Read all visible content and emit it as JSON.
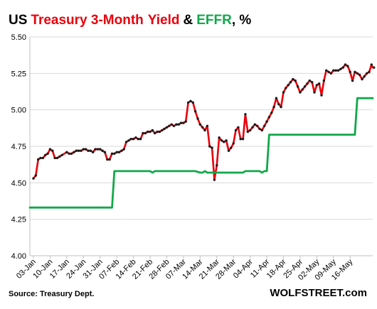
{
  "chart_data": {
    "type": "line",
    "title_parts": [
      {
        "text": "US ",
        "color": "#000000"
      },
      {
        "text": "Treasury 3-Month Yield",
        "color": "#e8000b"
      },
      {
        "text": " & ",
        "color": "#000000"
      },
      {
        "text": "EFFR",
        "color": "#11a84a"
      },
      {
        "text": ", %",
        "color": "#000000"
      }
    ],
    "title_1": "US",
    "title_2": "Treasury 3-Month",
    "title_3": "Yield",
    "title_4": "&",
    "title_5": "EFFR",
    "title_6": ", %",
    "ylim": [
      4.0,
      5.5
    ],
    "yticks": [
      "4.00",
      "4.25",
      "4.50",
      "4.75",
      "5.00",
      "5.25",
      "5.50"
    ],
    "xticks": [
      "03-Jan",
      "10-Jan",
      "17-Jan",
      "24-Jan",
      "31-Jan",
      "07-Feb",
      "14-Feb",
      "21-Feb",
      "28-Feb",
      "07-Mar",
      "14-Mar",
      "21-Mar",
      "28-Mar",
      "04-Apr",
      "11-Apr",
      "18-Apr",
      "25-Apr",
      "02-May",
      "09-May",
      "16-May"
    ],
    "x_range_days": [
      0,
      141
    ],
    "grid": "horizontal",
    "colors": {
      "treasury": "#e8000b",
      "effr": "#11a84a",
      "points": "#1a1a1a",
      "grid": "#d9d9d9"
    },
    "series": [
      {
        "name": "Treasury 3-Month Yield",
        "color": "#e8000b",
        "markers": true,
        "points": [
          [
            0,
            4.53
          ],
          [
            1,
            4.55
          ],
          [
            2,
            4.66
          ],
          [
            3,
            4.67
          ],
          [
            4,
            4.67
          ],
          [
            5,
            4.69
          ],
          [
            6,
            4.7
          ],
          [
            7,
            4.73
          ],
          [
            8,
            4.72
          ],
          [
            9,
            4.67
          ],
          [
            10,
            4.67
          ],
          [
            11,
            4.68
          ],
          [
            12,
            4.69
          ],
          [
            14,
            4.71
          ],
          [
            15,
            4.7
          ],
          [
            16,
            4.7
          ],
          [
            17,
            4.71
          ],
          [
            18,
            4.72
          ],
          [
            19,
            4.72
          ],
          [
            20,
            4.72
          ],
          [
            21,
            4.73
          ],
          [
            22,
            4.73
          ],
          [
            23,
            4.72
          ],
          [
            24,
            4.72
          ],
          [
            25,
            4.71
          ],
          [
            26,
            4.73
          ],
          [
            27,
            4.73
          ],
          [
            28,
            4.73
          ],
          [
            29,
            4.72
          ],
          [
            30,
            4.71
          ],
          [
            31,
            4.66
          ],
          [
            32,
            4.66
          ],
          [
            33,
            4.7
          ],
          [
            34,
            4.7
          ],
          [
            35,
            4.71
          ],
          [
            36,
            4.71
          ],
          [
            37,
            4.72
          ],
          [
            38,
            4.73
          ],
          [
            39,
            4.78
          ],
          [
            40,
            4.79
          ],
          [
            41,
            4.8
          ],
          [
            42,
            4.8
          ],
          [
            43,
            4.81
          ],
          [
            44,
            4.8
          ],
          [
            45,
            4.8
          ],
          [
            46,
            4.84
          ],
          [
            47,
            4.84
          ],
          [
            48,
            4.85
          ],
          [
            49,
            4.85
          ],
          [
            50,
            4.86
          ],
          [
            51,
            4.84
          ],
          [
            52,
            4.85
          ],
          [
            53,
            4.85
          ],
          [
            54,
            4.86
          ],
          [
            55,
            4.87
          ],
          [
            56,
            4.88
          ],
          [
            57,
            4.89
          ],
          [
            58,
            4.9
          ],
          [
            59,
            4.89
          ],
          [
            60,
            4.9
          ],
          [
            61,
            4.9
          ],
          [
            62,
            4.91
          ],
          [
            63,
            4.91
          ],
          [
            64,
            4.92
          ],
          [
            65,
            5.05
          ],
          [
            66,
            5.06
          ],
          [
            67,
            5.05
          ],
          [
            68,
            4.99
          ],
          [
            69,
            4.94
          ],
          [
            70,
            4.9
          ],
          [
            71,
            4.88
          ],
          [
            72,
            4.86
          ],
          [
            73,
            4.89
          ],
          [
            74,
            4.75
          ],
          [
            75,
            4.74
          ],
          [
            76,
            4.52
          ],
          [
            77,
            4.62
          ],
          [
            78,
            4.81
          ],
          [
            79,
            4.79
          ],
          [
            80,
            4.78
          ],
          [
            81,
            4.79
          ],
          [
            82,
            4.72
          ],
          [
            83,
            4.74
          ],
          [
            84,
            4.77
          ],
          [
            85,
            4.86
          ],
          [
            86,
            4.88
          ],
          [
            87,
            4.8
          ],
          [
            88,
            4.8
          ],
          [
            89,
            4.97
          ],
          [
            90,
            4.85
          ],
          [
            91,
            4.86
          ],
          [
            92,
            4.88
          ],
          [
            93,
            4.9
          ],
          [
            94,
            4.89
          ],
          [
            95,
            4.87
          ],
          [
            96,
            4.86
          ],
          [
            97,
            4.89
          ],
          [
            98,
            4.92
          ],
          [
            99,
            4.95
          ],
          [
            100,
            4.98
          ],
          [
            101,
            5.02
          ],
          [
            102,
            5.08
          ],
          [
            103,
            5.04
          ],
          [
            104,
            5.02
          ],
          [
            105,
            5.12
          ],
          [
            106,
            5.15
          ],
          [
            107,
            5.17
          ],
          [
            108,
            5.19
          ],
          [
            109,
            5.21
          ],
          [
            110,
            5.2
          ],
          [
            111,
            5.16
          ],
          [
            112,
            5.12
          ],
          [
            113,
            5.14
          ],
          [
            114,
            5.16
          ],
          [
            115,
            5.18
          ],
          [
            116,
            5.2
          ],
          [
            117,
            5.19
          ],
          [
            118,
            5.12
          ],
          [
            119,
            5.17
          ],
          [
            120,
            5.18
          ],
          [
            121,
            5.1
          ],
          [
            122,
            5.2
          ],
          [
            123,
            5.27
          ],
          [
            124,
            5.26
          ],
          [
            125,
            5.25
          ],
          [
            126,
            5.27
          ],
          [
            127,
            5.27
          ],
          [
            128,
            5.27
          ],
          [
            129,
            5.28
          ],
          [
            130,
            5.29
          ],
          [
            131,
            5.31
          ],
          [
            132,
            5.3
          ],
          [
            133,
            5.26
          ],
          [
            134,
            5.2
          ],
          [
            135,
            5.26
          ],
          [
            136,
            5.25
          ],
          [
            137,
            5.24
          ],
          [
            138,
            5.21
          ],
          [
            139,
            5.23
          ],
          [
            140,
            5.25
          ],
          [
            141,
            5.26
          ],
          [
            142,
            5.31
          ],
          [
            143,
            5.29
          ]
        ]
      },
      {
        "name": "EFFR",
        "color": "#11a84a",
        "markers": false,
        "points": [
          [
            -3,
            4.33
          ],
          [
            33,
            4.33
          ],
          [
            34,
            4.58
          ],
          [
            49,
            4.58
          ],
          [
            50,
            4.57
          ],
          [
            51,
            4.58
          ],
          [
            53,
            4.58
          ],
          [
            66,
            4.58
          ],
          [
            68,
            4.58
          ],
          [
            70,
            4.57
          ],
          [
            71,
            4.57
          ],
          [
            72,
            4.58
          ],
          [
            73,
            4.57
          ],
          [
            88,
            4.57
          ],
          [
            89,
            4.58
          ],
          [
            95,
            4.58
          ],
          [
            96,
            4.57
          ],
          [
            97,
            4.58
          ],
          [
            98,
            4.58
          ],
          [
            99,
            4.83
          ],
          [
            135,
            4.83
          ],
          [
            136,
            5.08
          ],
          [
            150,
            5.08
          ]
        ]
      }
    ]
  },
  "footer": {
    "source": "Source: Treasury Dept.",
    "brand": "WOLFSTREET.com"
  }
}
